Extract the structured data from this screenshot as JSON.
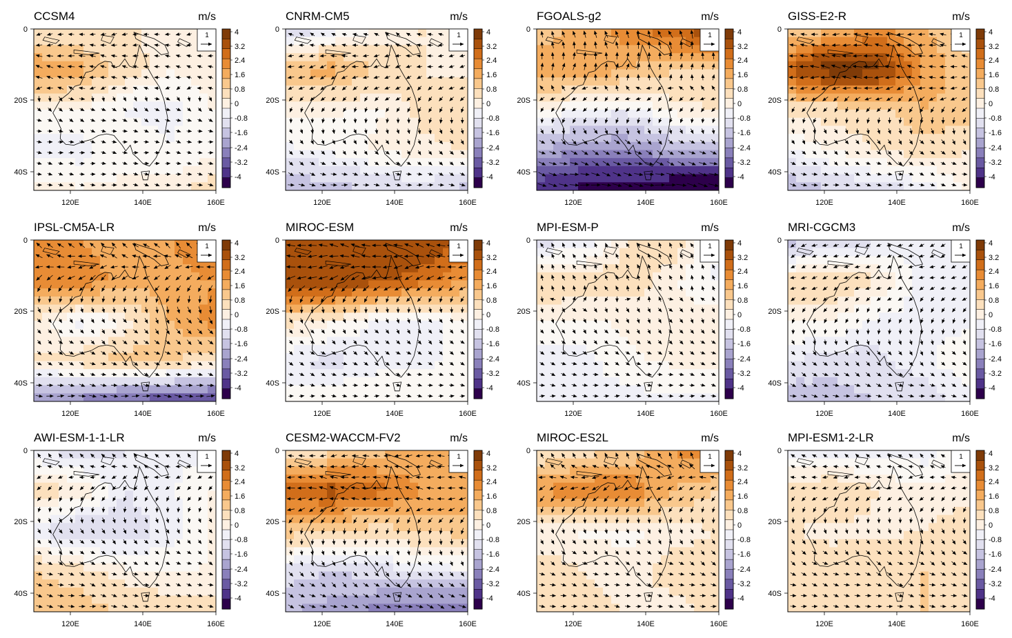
{
  "figure": {
    "units": "m/s",
    "x_ticks": [
      "120E",
      "140E",
      "160E"
    ],
    "y_ticks": [
      "0",
      "20S",
      "40S"
    ],
    "colorbar_labels": [
      "4",
      "3.2",
      "2.4",
      "1.6",
      "0.8",
      "0",
      "-0.8",
      "-1.6",
      "-2.4",
      "-3.2",
      "-4"
    ],
    "reference_vector": "1",
    "colors": {
      "pos": [
        "#fdf0e2",
        "#fce0bd",
        "#f9c88d",
        "#f4ac5e",
        "#e88c35",
        "#d16e1a",
        "#a9510c",
        "#7f3b08"
      ],
      "neg": [
        "#f0f0f7",
        "#e1e0ef",
        "#c6c3e1",
        "#a9a4cf",
        "#8a80bb",
        "#6a5aa3",
        "#4f3389",
        "#2d004b"
      ]
    }
  },
  "panels": [
    {
      "title": "CCSM4",
      "field": [
        [
          0.4,
          0.3,
          0.5,
          0.2,
          0.1
        ],
        [
          1.6,
          1.4,
          0.6,
          0.2,
          0.3
        ],
        [
          0.2,
          0.1,
          -0.2,
          -0.3,
          0.2
        ],
        [
          -0.3,
          -0.3,
          0.1,
          -0.1,
          0.1
        ],
        [
          0.3,
          0.2,
          0.2,
          0.3,
          0.6
        ]
      ],
      "wind": [
        [
          -1,
          0.2
        ],
        [
          -1.2,
          -0.3
        ],
        [
          0.6,
          0.4
        ],
        [
          0.9,
          0.1
        ],
        [
          1,
          0.2
        ]
      ]
    },
    {
      "title": "CNRM-CM5",
      "field": [
        [
          -0.8,
          -0.4,
          0.2,
          0.4,
          0.3
        ],
        [
          1.2,
          1.4,
          0.8,
          0.4,
          0.3
        ],
        [
          0.2,
          0.2,
          0.1,
          0.5,
          0.8
        ],
        [
          -0.2,
          -0.1,
          0.2,
          0.3,
          0.4
        ],
        [
          -1.2,
          -1.0,
          -0.8,
          -0.6,
          -1.0
        ]
      ],
      "wind": [
        [
          -0.6,
          -0.4
        ],
        [
          -1,
          0.3
        ],
        [
          -0.3,
          0.6
        ],
        [
          0.6,
          0.8
        ],
        [
          1,
          0
        ]
      ]
    },
    {
      "title": "FGOALS-g2",
      "field": [
        [
          0.8,
          1.4,
          1.8,
          2.4,
          2.8
        ],
        [
          1.6,
          1.6,
          1.2,
          0.8,
          0.6
        ],
        [
          0.2,
          -0.2,
          -0.3,
          0.3,
          0.4
        ],
        [
          -1.2,
          -1.6,
          -1.6,
          -1.2,
          -1.0
        ],
        [
          -2.8,
          -3.2,
          -3.4,
          -3.8,
          -4.0
        ]
      ],
      "wind": [
        [
          -0.3,
          -0.7
        ],
        [
          0.2,
          -0.8
        ],
        [
          -0.6,
          0.7
        ],
        [
          0.9,
          0.5
        ],
        [
          1,
          0.1
        ]
      ]
    },
    {
      "title": "GISS-E2-R",
      "field": [
        [
          0.6,
          1.2,
          1.6,
          1.2,
          0.6
        ],
        [
          2.4,
          3.4,
          3.2,
          1.6,
          0.8
        ],
        [
          0.6,
          0.5,
          0.6,
          1.2,
          1.0
        ],
        [
          -0.2,
          0.2,
          0.4,
          0.6,
          0.4
        ],
        [
          -1.2,
          -0.8,
          -0.6,
          -0.4,
          0.2
        ]
      ],
      "wind": [
        [
          -1,
          0
        ],
        [
          -1.1,
          -0.2
        ],
        [
          -0.4,
          0.6
        ],
        [
          0.7,
          0.7
        ],
        [
          1,
          0.1
        ]
      ]
    },
    {
      "title": "IPSL-CM5A-LR",
      "field": [
        [
          1.6,
          1.6,
          1.2,
          1.6,
          2.4
        ],
        [
          1.8,
          2.0,
          1.4,
          1.4,
          1.6
        ],
        [
          0.4,
          -0.3,
          0.2,
          1.2,
          1.8
        ],
        [
          0.4,
          0.6,
          1.0,
          0.8,
          0.6
        ],
        [
          -1.6,
          -1.8,
          -2.2,
          -2.4,
          -2.6
        ]
      ],
      "wind": [
        [
          -0.6,
          -0.7
        ],
        [
          -0.7,
          0.6
        ],
        [
          0.5,
          0.8
        ],
        [
          0.9,
          0.5
        ],
        [
          1,
          0
        ]
      ]
    },
    {
      "title": "MIROC-ESM",
      "field": [
        [
          2.4,
          2.6,
          2.8,
          2.8,
          2.4
        ],
        [
          2.8,
          3.0,
          2.6,
          2.2,
          1.6
        ],
        [
          0.6,
          0.2,
          -0.2,
          -0.3,
          0.1
        ],
        [
          -0.4,
          -0.5,
          -0.3,
          -0.2,
          -0.1
        ],
        [
          0.1,
          0.1,
          0.2,
          0.1,
          0.1
        ]
      ],
      "wind": [
        [
          -1,
          -0.3
        ],
        [
          -0.9,
          0.4
        ],
        [
          0.4,
          0.8
        ],
        [
          0.8,
          0.5
        ],
        [
          1,
          0
        ]
      ]
    },
    {
      "title": "MPI-ESM-P",
      "field": [
        [
          -0.6,
          -0.4,
          0.4,
          0.6,
          -0.2
        ],
        [
          0.8,
          0.6,
          0.6,
          0.2,
          -0.2
        ],
        [
          0.1,
          0.1,
          0.2,
          0.3,
          0.3
        ],
        [
          -0.3,
          -0.3,
          0.1,
          0.2,
          0.2
        ],
        [
          -0.4,
          -0.3,
          -0.3,
          -0.2,
          -0.2
        ]
      ],
      "wind": [
        [
          -0.4,
          -0.8
        ],
        [
          -0.3,
          -0.8
        ],
        [
          0.4,
          0.8
        ],
        [
          0.8,
          0.4
        ],
        [
          1,
          0
        ]
      ]
    },
    {
      "title": "MRI-CGCM3",
      "field": [
        [
          -1.0,
          -0.8,
          -0.4,
          -0.3,
          -0.4
        ],
        [
          0.6,
          0.8,
          0.4,
          -0.3,
          -0.3
        ],
        [
          0.2,
          0.1,
          -0.2,
          -0.3,
          -0.2
        ],
        [
          -0.4,
          -0.6,
          -0.5,
          -0.2,
          0.1
        ],
        [
          -1.2,
          -1.0,
          -0.8,
          -0.6,
          -0.3
        ]
      ],
      "wind": [
        [
          -0.8,
          0.4
        ],
        [
          -0.9,
          0.3
        ],
        [
          -0.3,
          0.8
        ],
        [
          0.7,
          0.7
        ],
        [
          1,
          0.1
        ]
      ]
    },
    {
      "title": "AWI-ESM-1-1-LR",
      "field": [
        [
          -0.4,
          -0.6,
          -0.4,
          -0.2,
          -0.3
        ],
        [
          0.6,
          0.4,
          -0.4,
          -0.2,
          0.2
        ],
        [
          -0.3,
          -0.8,
          -0.6,
          -0.3,
          0.2
        ],
        [
          0.8,
          0.6,
          0.2,
          0.1,
          0.2
        ],
        [
          1.2,
          1.0,
          0.8,
          0.6,
          0.6
        ]
      ],
      "wind": [
        [
          -0.5,
          -0.8
        ],
        [
          -0.6,
          0.7
        ],
        [
          0.5,
          0.8
        ],
        [
          0.9,
          0.4
        ],
        [
          1,
          0.1
        ]
      ]
    },
    {
      "title": "CESM2-WACCM-FV2",
      "field": [
        [
          0.4,
          0.6,
          1.0,
          1.4,
          1.6
        ],
        [
          2.2,
          2.6,
          2.2,
          1.6,
          1.4
        ],
        [
          1.0,
          0.8,
          0.6,
          0.8,
          1.0
        ],
        [
          -0.6,
          -0.8,
          -0.6,
          -0.4,
          -0.2
        ],
        [
          -1.2,
          -1.4,
          -1.8,
          -2.0,
          -2.2
        ]
      ],
      "wind": [
        [
          -1,
          0.1
        ],
        [
          -1,
          -0.2
        ],
        [
          -0.2,
          0.9
        ],
        [
          0.6,
          0.8
        ],
        [
          1,
          0.3
        ]
      ]
    },
    {
      "title": "MIROC-ES2L",
      "field": [
        [
          0.4,
          0.6,
          0.8,
          1.6,
          2.0
        ],
        [
          1.6,
          2.0,
          2.0,
          1.2,
          0.8
        ],
        [
          0.2,
          0.1,
          0.1,
          0.2,
          0.4
        ],
        [
          0.6,
          0.4,
          0.2,
          0.6,
          0.8
        ],
        [
          0.8,
          0.6,
          0.4,
          0.2,
          0.6
        ]
      ],
      "wind": [
        [
          -0.3,
          -0.9
        ],
        [
          -0.8,
          0.5
        ],
        [
          0.3,
          0.9
        ],
        [
          0.9,
          0.4
        ],
        [
          1,
          0.1
        ]
      ]
    },
    {
      "title": "MPI-ESM1-2-LR",
      "field": [
        [
          -0.3,
          -0.4,
          -0.2,
          -0.3,
          0.2
        ],
        [
          0.6,
          0.8,
          0.4,
          0.2,
          0.3
        ],
        [
          0.4,
          0.3,
          0.3,
          0.4,
          0.6
        ],
        [
          0.8,
          0.6,
          0.8,
          0.8,
          0.6
        ],
        [
          0.6,
          0.4,
          0.6,
          0.8,
          0.4
        ]
      ],
      "wind": [
        [
          -0.6,
          -0.6
        ],
        [
          -0.8,
          0.4
        ],
        [
          0.3,
          0.9
        ],
        [
          0.9,
          0.4
        ],
        [
          1,
          0.1
        ]
      ]
    }
  ]
}
